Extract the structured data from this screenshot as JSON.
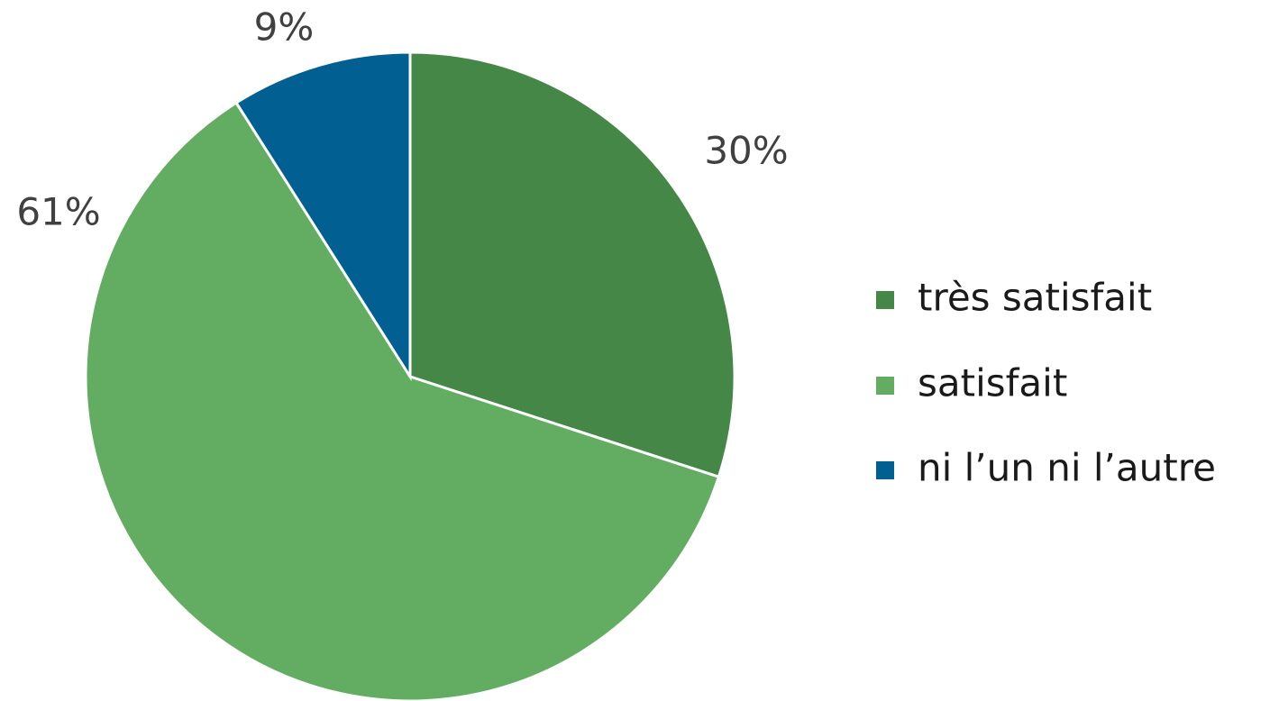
{
  "chart_data": {
    "type": "pie",
    "categories": [
      "très satisfait",
      "satisfait",
      "ni l’un ni l’autre"
    ],
    "values": [
      30,
      61,
      9
    ],
    "value_labels": [
      "30%",
      "61%",
      "9%"
    ],
    "colors": [
      "#458746",
      "#63ad63",
      "#025f91"
    ],
    "legend": "right"
  }
}
